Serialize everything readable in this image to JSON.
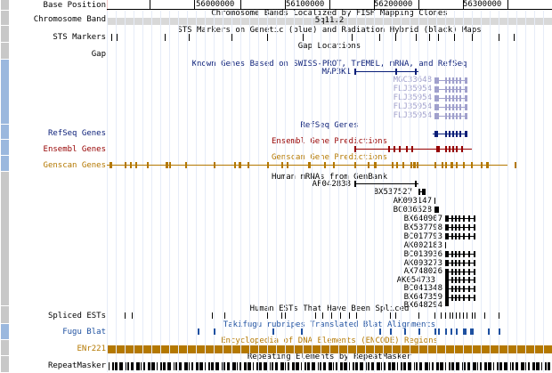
{
  "colors": {
    "navy": "#0a1e78",
    "ensembl": "#960000",
    "genscan": "#b47800",
    "encode": "#b47800",
    "faded": "#a0a0cc",
    "black": "#000000",
    "fugu": "#1e50a0",
    "sidebar_gray": "#c8c8c8",
    "sidebar_blue": "#9bb8de"
  },
  "ruler": {
    "label": "Base Position",
    "ticks": [
      "56000000",
      "56100000",
      "56200000",
      "56300000"
    ]
  },
  "band": {
    "label": "Chromosome Band",
    "title": "Chromosome Bands Localized by FISH Mapping Clones",
    "band_name": "5q11.2"
  },
  "sts": {
    "label": "STS Markers",
    "title": "STS Markers on Genetic (blue) and Radiation Hybrid (black) Maps"
  },
  "gap": {
    "label": "Gap",
    "title": "Gap Locations"
  },
  "known": {
    "title": "Known Genes Based on SWISS-PROT, TrEMBL, mRNA, and RefSeq",
    "genes": [
      "MAP3K1",
      "MGC33648",
      "FLJ35954",
      "FLJ35954",
      "FLJ35954",
      "FLJ35954"
    ]
  },
  "refseq": {
    "label": "RefSeq Genes",
    "title": "RefSeq Genes"
  },
  "ensembl": {
    "label": "Ensembl Genes",
    "title": "Ensembl Gene Predictions"
  },
  "genscan": {
    "label": "Genscan Genes",
    "title": "Genscan Gene Predictions"
  },
  "mrna": {
    "title": "Human mRNAs from GenBank",
    "items": [
      "AF042838",
      "BX537527",
      "AK093147",
      "BC036528",
      "BX640907",
      "BX537798",
      "BC017793",
      "AK002183",
      "BC013936",
      "AK093273",
      "AX748026",
      "AK054733",
      "BC041348",
      "BX647359",
      "BX648294"
    ]
  },
  "spliced": {
    "label": "Spliced ESTs",
    "title": "Human ESTs That Have Been Spliced"
  },
  "fugu": {
    "label": "Fugu Blat",
    "title": "Takifugu rubripes Translated Blat Alignments"
  },
  "encode": {
    "label": "ENr221",
    "title": "Encyclopedia of DNA Elements (ENCODE) Regions"
  },
  "repeat": {
    "label": "RepeatMasker",
    "title": "Repeating Elements by RepeatMasker"
  }
}
